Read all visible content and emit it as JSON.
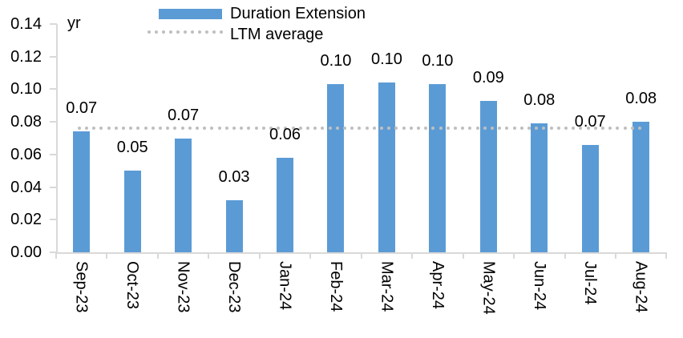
{
  "chart_data": {
    "type": "bar",
    "unit_label": "yr",
    "categories": [
      "Sep-23",
      "Oct-23",
      "Nov-23",
      "Dec-23",
      "Jan-24",
      "Feb-24",
      "Mar-24",
      "Apr-24",
      "May-24",
      "Jun-24",
      "Jul-24",
      "Aug-24"
    ],
    "series": [
      {
        "name": "Duration Extension",
        "values": [
          0.074,
          0.05,
          0.07,
          0.032,
          0.058,
          0.103,
          0.104,
          0.103,
          0.093,
          0.079,
          0.066,
          0.08
        ],
        "labels": [
          "0.07",
          "0.05",
          "0.07",
          "0.03",
          "0.06",
          "0.10",
          "0.10",
          "0.10",
          "0.09",
          "0.08",
          "0.07",
          "0.08"
        ],
        "color": "#5B9BD5"
      }
    ],
    "ltm_average": {
      "name": "LTM average",
      "value": 0.076,
      "color": "#BFBFBF",
      "style": "dotted"
    },
    "ylim": [
      0,
      0.14
    ],
    "ytick_labels": [
      "0.00",
      "0.02",
      "0.04",
      "0.06",
      "0.08",
      "0.10",
      "0.12",
      "0.14"
    ],
    "ytick_values": [
      0,
      0.02,
      0.04,
      0.06,
      0.08,
      0.1,
      0.12,
      0.14
    ],
    "grid": false,
    "legend_position": "top"
  }
}
